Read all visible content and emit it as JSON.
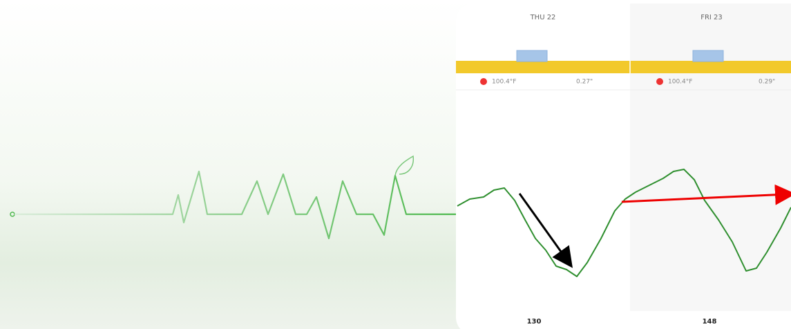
{
  "days": [
    {
      "label": "THU 22",
      "temperature": "100.4°F",
      "rainfall": "0.27\"",
      "count": 130
    },
    {
      "label": "FRI 23",
      "temperature": "100.4°F",
      "rainfall": "0.29\"",
      "count": 148
    }
  ]
}
